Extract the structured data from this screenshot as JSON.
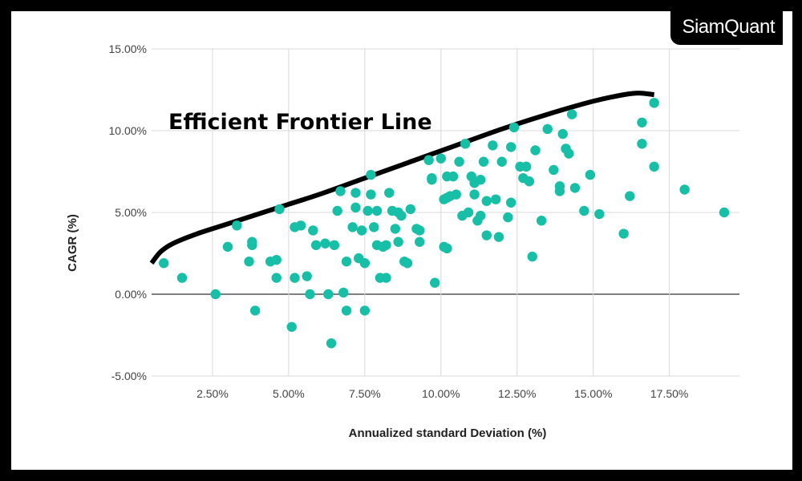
{
  "brand": {
    "label": "SiamQuant"
  },
  "colors": {
    "points": "#17bfa6",
    "frontier": "#000000",
    "grid": "#d9d9d9",
    "zero_line": "#333333"
  },
  "chart_data": {
    "type": "scatter",
    "title": "",
    "xlabel": "Annualized standard Deviation (%)",
    "ylabel": "CAGR (%)",
    "xlim": [
      0.5,
      19.8
    ],
    "ylim": [
      -5,
      15
    ],
    "x_ticks": [
      2.5,
      5,
      7.5,
      10,
      12.5,
      15,
      17.5
    ],
    "x_tick_labels": [
      "2.50%",
      "5.00%",
      "7.50%",
      "10.00%",
      "12.50%",
      "15.00%",
      "17.50%"
    ],
    "y_ticks": [
      -5,
      0,
      5,
      10,
      15
    ],
    "y_tick_labels": [
      "-5.00%",
      "0.00%",
      "5.00%",
      "10.00%",
      "15.00%"
    ],
    "grid": true,
    "annotation": {
      "text": "Efficient Frontier Line"
    },
    "frontier_line": {
      "x": [
        0.5,
        0.8,
        1.2,
        2.0,
        3.0,
        4.0,
        5.0,
        6.0,
        7.5,
        9.0,
        10.5,
        12.0,
        13.5,
        15.0,
        16.0,
        16.5,
        17.0
      ],
      "y": [
        1.9,
        2.6,
        3.1,
        3.7,
        4.3,
        4.9,
        5.5,
        6.1,
        7.1,
        8.1,
        9.1,
        10.1,
        11.0,
        11.8,
        12.2,
        12.3,
        12.2
      ]
    },
    "points": {
      "x": [
        0.9,
        1.5,
        2.6,
        3.0,
        3.3,
        3.7,
        3.8,
        3.8,
        3.9,
        4.4,
        4.6,
        4.6,
        4.7,
        5.1,
        5.2,
        5.2,
        5.4,
        5.6,
        5.7,
        5.8,
        5.9,
        6.2,
        6.3,
        6.4,
        6.5,
        6.6,
        6.7,
        6.8,
        6.9,
        6.9,
        7.1,
        7.2,
        7.2,
        7.3,
        7.4,
        7.5,
        7.5,
        7.6,
        7.7,
        7.7,
        7.8,
        7.9,
        7.9,
        8.0,
        8.1,
        8.2,
        8.2,
        8.3,
        8.4,
        8.5,
        8.6,
        8.6,
        8.7,
        8.8,
        8.9,
        9.0,
        9.2,
        9.3,
        9.3,
        9.6,
        9.7,
        9.7,
        9.8,
        10.0,
        10.1,
        10.1,
        10.2,
        10.2,
        10.2,
        10.3,
        10.4,
        10.5,
        10.6,
        10.7,
        10.8,
        10.9,
        11.0,
        11.1,
        11.1,
        11.2,
        11.3,
        11.3,
        11.4,
        11.5,
        11.5,
        11.7,
        11.8,
        11.9,
        12.0,
        12.2,
        12.3,
        12.3,
        12.4,
        12.6,
        12.7,
        12.8,
        12.9,
        13.0,
        13.1,
        13.3,
        13.5,
        13.7,
        13.9,
        13.9,
        14.0,
        14.1,
        14.2,
        14.3,
        14.4,
        14.7,
        14.9,
        15.2,
        16.0,
        16.2,
        16.6,
        16.6,
        17.0,
        17.0,
        18.0,
        19.3
      ],
      "y": [
        1.9,
        1.0,
        0.0,
        2.9,
        4.2,
        2.0,
        3.0,
        3.2,
        -1.0,
        2.0,
        2.1,
        1.0,
        5.2,
        -2.0,
        4.1,
        1.0,
        4.2,
        1.1,
        0.0,
        3.9,
        3.0,
        3.1,
        0.0,
        -3.0,
        3.0,
        5.1,
        6.3,
        0.1,
        -1.0,
        2.0,
        4.1,
        6.2,
        5.3,
        2.2,
        3.9,
        1.9,
        -1.0,
        5.1,
        6.1,
        7.3,
        4.1,
        3.0,
        5.1,
        1.0,
        2.9,
        3.0,
        1.0,
        6.2,
        5.1,
        4.0,
        3.2,
        5.0,
        4.8,
        2.0,
        1.9,
        5.2,
        4.0,
        3.2,
        3.9,
        8.2,
        7.1,
        7.0,
        0.7,
        8.3,
        2.9,
        5.8,
        7.2,
        5.9,
        2.8,
        6.0,
        7.2,
        6.1,
        8.1,
        4.8,
        9.2,
        5.0,
        7.2,
        6.8,
        6.1,
        4.5,
        4.8,
        7.0,
        8.1,
        3.6,
        5.7,
        9.1,
        5.8,
        3.5,
        8.1,
        4.7,
        9.0,
        5.6,
        10.2,
        7.8,
        7.1,
        7.8,
        6.9,
        2.3,
        8.8,
        4.5,
        10.1,
        7.6,
        6.6,
        6.3,
        9.8,
        8.9,
        8.6,
        11.0,
        6.5,
        5.1,
        7.3,
        4.9,
        3.7,
        6.0,
        10.5,
        9.2,
        11.7,
        7.8,
        6.4,
        5.0
      ]
    }
  }
}
